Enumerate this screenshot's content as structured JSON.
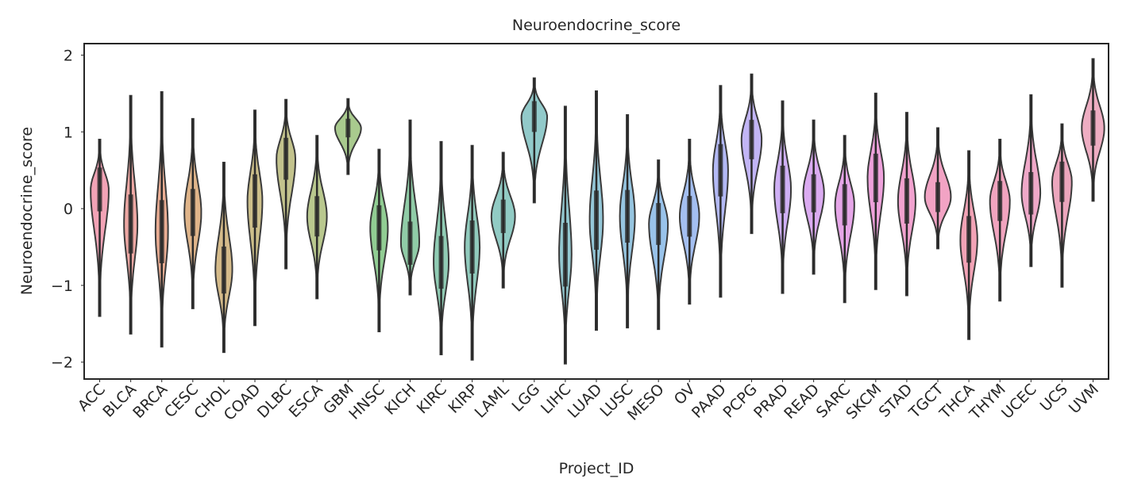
{
  "chart_data": {
    "type": "violin",
    "title": "Neuroendocrine_score",
    "x_label": "Project_ID",
    "y_label": "Neuroendocrine_score",
    "categories": [
      "ACC",
      "BLCA",
      "BRCA",
      "CESC",
      "CHOL",
      "COAD",
      "DLBC",
      "ESCA",
      "GBM",
      "HNSC",
      "KICH",
      "KIRC",
      "KIRP",
      "LAML",
      "LGG",
      "LIHC",
      "LUAD",
      "LUSC",
      "MESO",
      "OV",
      "PAAD",
      "PCPG",
      "PRAD",
      "READ",
      "SARC",
      "SKCM",
      "STAD",
      "TGCT",
      "THCA",
      "THYM",
      "UCEC",
      "UCS",
      "UVM"
    ],
    "min": [
      -1.4,
      -1.63,
      -1.8,
      -1.3,
      -1.87,
      -1.52,
      -0.78,
      -1.17,
      0.45,
      -1.6,
      -1.12,
      -1.9,
      -1.97,
      -1.03,
      0.08,
      -2.02,
      -1.58,
      -1.55,
      -1.57,
      -1.24,
      -1.15,
      -0.32,
      -1.1,
      -0.85,
      -1.22,
      -1.05,
      -1.13,
      -0.52,
      -1.7,
      -1.2,
      -0.75,
      -1.02,
      0.1
    ],
    "median": [
      0.25,
      -0.2,
      -0.3,
      -0.05,
      -0.8,
      0.1,
      0.65,
      -0.1,
      1.05,
      -0.25,
      -0.45,
      -0.7,
      -0.5,
      -0.1,
      1.2,
      -0.6,
      -0.15,
      -0.1,
      -0.2,
      -0.1,
      0.5,
      0.9,
      0.25,
      0.2,
      0.05,
      0.4,
      0.1,
      0.15,
      -0.4,
      0.1,
      0.2,
      0.35,
      1.05
    ],
    "max": [
      0.9,
      1.47,
      1.52,
      1.17,
      0.6,
      1.28,
      1.42,
      0.95,
      1.43,
      0.77,
      1.15,
      0.87,
      0.82,
      0.73,
      1.7,
      1.33,
      1.53,
      1.22,
      0.63,
      0.9,
      1.6,
      1.75,
      1.4,
      1.15,
      0.95,
      1.5,
      1.25,
      1.05,
      0.75,
      0.9,
      1.48,
      1.1,
      1.95
    ],
    "colors": [
      "#e8577a",
      "#e0605a",
      "#d86a3a",
      "#c7782a",
      "#b3832a",
      "#a28b2a",
      "#929230",
      "#7f9a31",
      "#639f31",
      "#36a43a",
      "#34a35f",
      "#35a276",
      "#36a186",
      "#37a093",
      "#389e9f",
      "#3a9cab",
      "#3c99b8",
      "#3f96c7",
      "#4591d8",
      "#5a8ae6",
      "#7480ec",
      "#8f78ec",
      "#a76fec",
      "#bd66e6",
      "#d15dd5",
      "#e053bd",
      "#e655a8",
      "#e85794",
      "#e8577a",
      "#e55a8a",
      "#e2619a",
      "#dd5c86",
      "#e06a8f"
    ],
    "ylim": [
      -2.22,
      2.15
    ],
    "yticks": [
      {
        "value": -2,
        "label": "−2"
      },
      {
        "value": -1,
        "label": "−1"
      },
      0,
      1,
      2
    ]
  }
}
